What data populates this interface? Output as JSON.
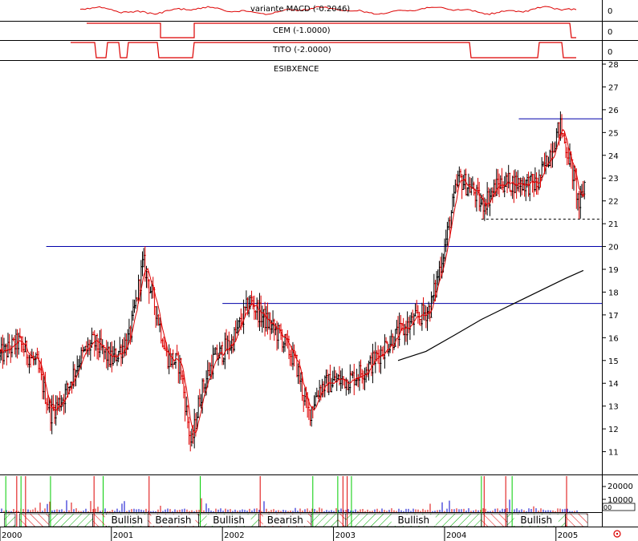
{
  "colors": {
    "up": "#000000",
    "down": "#dd0000",
    "ma_short": "#dd0000",
    "ma_long": "#000000",
    "resistance": "#0000aa",
    "volume_up": "#0000cc",
    "volume_down": "#dd0000",
    "bullish_fill": "#00aa00",
    "bearish_fill": "#dd0000",
    "marker_green": "#00cc00",
    "marker_red": "#dd0000"
  },
  "panels": {
    "macd": {
      "label": "variante MACD (-0.2046)",
      "scale_label": "0"
    },
    "cem": {
      "label": "CEM (-1.0000)",
      "scale_label": "0"
    },
    "tito": {
      "label": "TITO (-2.0000)",
      "scale_label": "0"
    },
    "price": {
      "label": "ESIBXENCE"
    },
    "volume": {
      "scale_labels": [
        "20000",
        "10000",
        "00"
      ]
    }
  },
  "corner_icon": "settings-circle-icon",
  "chart_data": {
    "type": "candlestick",
    "title": "ESIBXENCE",
    "x_range": [
      "2000-01-01",
      "2005-06-01"
    ],
    "x_tick_labels": [
      "2000",
      "2001",
      "2002",
      "2003",
      "2004",
      "2005"
    ],
    "ylim": [
      10,
      28
    ],
    "y_tick_labels": [
      "11",
      "12",
      "13",
      "14",
      "15",
      "16",
      "17",
      "18",
      "19",
      "20",
      "21",
      "22",
      "23",
      "24",
      "25",
      "26",
      "27",
      "28"
    ],
    "grid": false,
    "price_anchors": [
      {
        "date": "2000-01-01",
        "value": 15.2
      },
      {
        "date": "2000-03-01",
        "value": 15.8
      },
      {
        "date": "2000-05-01",
        "value": 14.8
      },
      {
        "date": "2000-06-15",
        "value": 12.7
      },
      {
        "date": "2000-08-01",
        "value": 13.5
      },
      {
        "date": "2000-09-15",
        "value": 15.0
      },
      {
        "date": "2000-11-01",
        "value": 15.8
      },
      {
        "date": "2001-01-01",
        "value": 15.0
      },
      {
        "date": "2001-03-01",
        "value": 16.0
      },
      {
        "date": "2001-04-15",
        "value": 19.3
      },
      {
        "date": "2001-06-01",
        "value": 17.0
      },
      {
        "date": "2001-07-01",
        "value": 15.2
      },
      {
        "date": "2001-08-15",
        "value": 14.8
      },
      {
        "date": "2001-09-20",
        "value": 11.2
      },
      {
        "date": "2001-10-20",
        "value": 13.5
      },
      {
        "date": "2001-12-01",
        "value": 15.0
      },
      {
        "date": "2002-02-01",
        "value": 15.8
      },
      {
        "date": "2002-04-01",
        "value": 17.6
      },
      {
        "date": "2002-06-01",
        "value": 16.6
      },
      {
        "date": "2002-07-15",
        "value": 16.0
      },
      {
        "date": "2002-09-01",
        "value": 14.8
      },
      {
        "date": "2002-10-10",
        "value": 12.6
      },
      {
        "date": "2002-11-15",
        "value": 13.8
      },
      {
        "date": "2003-01-01",
        "value": 14.1
      },
      {
        "date": "2003-03-01",
        "value": 14.2
      },
      {
        "date": "2003-05-01",
        "value": 14.8
      },
      {
        "date": "2003-07-01",
        "value": 15.8
      },
      {
        "date": "2003-09-01",
        "value": 16.5
      },
      {
        "date": "2003-11-15",
        "value": 17.3
      },
      {
        "date": "2004-01-01",
        "value": 20.0
      },
      {
        "date": "2004-02-15",
        "value": 23.0
      },
      {
        "date": "2004-04-01",
        "value": 22.5
      },
      {
        "date": "2004-05-01",
        "value": 21.8
      },
      {
        "date": "2004-07-01",
        "value": 22.8
      },
      {
        "date": "2004-09-01",
        "value": 22.8
      },
      {
        "date": "2004-11-01",
        "value": 22.7
      },
      {
        "date": "2005-01-15",
        "value": 25.3
      },
      {
        "date": "2005-02-20",
        "value": 23.5
      },
      {
        "date": "2005-03-20",
        "value": 21.7
      },
      {
        "date": "2005-04-05",
        "value": 22.8
      }
    ],
    "long_ma": [
      {
        "date": "2003-08-01",
        "value": 15.0
      },
      {
        "date": "2003-11-01",
        "value": 15.4
      },
      {
        "date": "2004-02-01",
        "value": 16.1
      },
      {
        "date": "2004-05-01",
        "value": 16.8
      },
      {
        "date": "2004-08-01",
        "value": 17.4
      },
      {
        "date": "2004-11-01",
        "value": 18.0
      },
      {
        "date": "2005-02-01",
        "value": 18.6
      },
      {
        "date": "2005-04-01",
        "value": 18.95
      }
    ],
    "horizontal_lines": [
      {
        "value": 20.0,
        "from": "2000-06-01",
        "to": "2005-06-01",
        "style": "solid",
        "color": "#0000aa"
      },
      {
        "value": 17.5,
        "from": "2002-01-01",
        "to": "2005-06-01",
        "style": "solid",
        "color": "#0000aa"
      },
      {
        "value": 25.6,
        "from": "2004-09-01",
        "to": "2005-06-01",
        "style": "solid",
        "color": "#0000aa"
      },
      {
        "value": 21.2,
        "from": "2004-05-01",
        "to": "2005-06-01",
        "style": "dashed",
        "color": "#000000"
      }
    ],
    "regimes": [
      {
        "from": "2000-01-15",
        "to": "2000-02-20",
        "type": "bullish",
        "label": ""
      },
      {
        "from": "2000-03-05",
        "to": "2000-06-10",
        "type": "bearish",
        "label": ""
      },
      {
        "from": "2000-06-10",
        "to": "2000-11-01",
        "type": "bullish",
        "label": ""
      },
      {
        "from": "2000-11-01",
        "to": "2000-12-15",
        "type": "bearish",
        "label": ""
      },
      {
        "from": "2000-12-15",
        "to": "2001-05-01",
        "type": "bullish",
        "label": "Bullish"
      },
      {
        "from": "2001-05-01",
        "to": "2001-10-15",
        "type": "bearish",
        "label": "Bearish"
      },
      {
        "from": "2001-10-15",
        "to": "2002-05-01",
        "type": "bullish",
        "label": "Bullish"
      },
      {
        "from": "2002-05-01",
        "to": "2002-10-20",
        "type": "bearish",
        "label": "Bearish"
      },
      {
        "from": "2002-10-20",
        "to": "2003-01-15",
        "type": "bullish",
        "label": ""
      },
      {
        "from": "2003-01-15",
        "to": "2003-02-10",
        "type": "bearish",
        "label": ""
      },
      {
        "from": "2003-02-10",
        "to": "2004-05-01",
        "type": "bullish",
        "label": "Bullish"
      },
      {
        "from": "2004-05-01",
        "to": "2004-07-25",
        "type": "bearish",
        "label": ""
      },
      {
        "from": "2004-07-25",
        "to": "2005-02-01",
        "type": "bullish",
        "label": "Bullish"
      },
      {
        "from": "2005-02-01",
        "to": "2005-04-15",
        "type": "bearish",
        "label": ""
      }
    ],
    "signal_markers": [
      {
        "date": "2000-01-20",
        "color": "green"
      },
      {
        "date": "2000-02-25",
        "color": "red"
      },
      {
        "date": "2000-03-10",
        "color": "green"
      },
      {
        "date": "2000-03-25",
        "color": "red"
      },
      {
        "date": "2000-06-15",
        "color": "green"
      },
      {
        "date": "2000-11-05",
        "color": "red"
      },
      {
        "date": "2000-12-05",
        "color": "green"
      },
      {
        "date": "2001-05-05",
        "color": "red"
      },
      {
        "date": "2001-10-20",
        "color": "green"
      },
      {
        "date": "2002-05-05",
        "color": "red"
      },
      {
        "date": "2002-10-25",
        "color": "green"
      },
      {
        "date": "2003-01-15",
        "color": "green"
      },
      {
        "date": "2003-02-01",
        "color": "red"
      },
      {
        "date": "2003-02-15",
        "color": "red"
      },
      {
        "date": "2003-03-01",
        "color": "green"
      },
      {
        "date": "2004-05-01",
        "color": "green"
      },
      {
        "date": "2004-05-10",
        "color": "red"
      },
      {
        "date": "2004-07-20",
        "color": "red"
      },
      {
        "date": "2004-08-10",
        "color": "green"
      },
      {
        "date": "2005-02-05",
        "color": "red"
      }
    ]
  }
}
